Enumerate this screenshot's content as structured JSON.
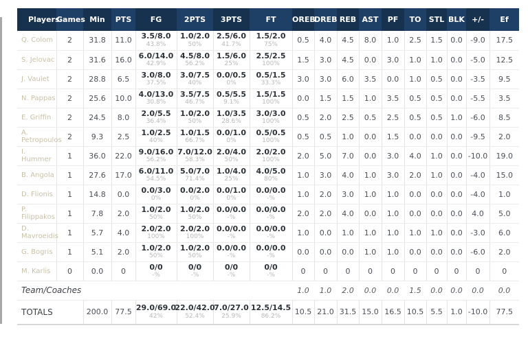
{
  "table": {
    "columns": [
      "Players",
      "Games",
      "Min",
      "PTS",
      "FG",
      "2PTS",
      "3PTS",
      "FT",
      "OREB",
      "DREB",
      "REB",
      "AST",
      "PF",
      "TO",
      "STL",
      "BLK",
      "+/-",
      "Ef"
    ],
    "players": [
      {
        "name": "Q. Colom",
        "games": "2",
        "min": "31.8",
        "pts": "11.0",
        "fg": {
          "v": "3.5/8.0",
          "pct": "43.8%"
        },
        "p2": {
          "v": "1.0/2.0",
          "pct": "50%"
        },
        "p3": {
          "v": "2.5/6.0",
          "pct": "41.7%"
        },
        "ft": {
          "v": "1.5/2.0",
          "pct": "75%"
        },
        "stats": [
          "0.5",
          "4.0",
          "4.5",
          "8.0",
          "1.0",
          "2.5",
          "1.5",
          "0.0",
          "-9.0",
          "17.5"
        ]
      },
      {
        "name": "S. Jelovac",
        "games": "2",
        "min": "31.6",
        "pts": "16.0",
        "fg": {
          "v": "6.0/14.0",
          "pct": "42.9%"
        },
        "p2": {
          "v": "4.5/8.0",
          "pct": "56.2%"
        },
        "p3": {
          "v": "1.5/6.0",
          "pct": "25%"
        },
        "ft": {
          "v": "2.5/2.5",
          "pct": "100%"
        },
        "stats": [
          "1.5",
          "3.0",
          "4.5",
          "0.0",
          "3.0",
          "1.0",
          "1.0",
          "0.0",
          "-5.0",
          "12.5"
        ]
      },
      {
        "name": "J. Vaulet",
        "games": "2",
        "min": "28.8",
        "pts": "6.5",
        "fg": {
          "v": "3.0/8.0",
          "pct": "37.5%"
        },
        "p2": {
          "v": "3.0/7.5",
          "pct": "40%"
        },
        "p3": {
          "v": "0.0/0.5",
          "pct": "0%"
        },
        "ft": {
          "v": "0.5/1.5",
          "pct": "33.3%"
        },
        "stats": [
          "3.0",
          "3.0",
          "6.0",
          "3.5",
          "0.0",
          "1.0",
          "0.5",
          "0.0",
          "-3.5",
          "9.5"
        ]
      },
      {
        "name": "N. Pappas",
        "games": "2",
        "min": "25.6",
        "pts": "10.0",
        "fg": {
          "v": "4.0/13.0",
          "pct": "30.8%"
        },
        "p2": {
          "v": "3.5/7.5",
          "pct": "46.7%"
        },
        "p3": {
          "v": "0.5/5.5",
          "pct": "9.1%"
        },
        "ft": {
          "v": "1.5/1.5",
          "pct": "100%"
        },
        "stats": [
          "0.0",
          "1.5",
          "1.5",
          "1.0",
          "3.5",
          "0.5",
          "0.5",
          "0.0",
          "-5.5",
          "3.5"
        ]
      },
      {
        "name": "E. Griffin",
        "games": "2",
        "min": "24.5",
        "pts": "8.0",
        "fg": {
          "v": "2.0/5.5",
          "pct": "36.4%"
        },
        "p2": {
          "v": "1.0/2.0",
          "pct": "50%"
        },
        "p3": {
          "v": "1.0/3.5",
          "pct": "28.6%"
        },
        "ft": {
          "v": "3.0/3.0",
          "pct": "100%"
        },
        "stats": [
          "0.5",
          "2.0",
          "2.5",
          "0.5",
          "2.5",
          "0.5",
          "0.5",
          "1.0",
          "-6.0",
          "8.5"
        ]
      },
      {
        "name": "A. Petropoulos",
        "games": "2",
        "min": "9.3",
        "pts": "2.5",
        "fg": {
          "v": "1.0/2.5",
          "pct": "40%"
        },
        "p2": {
          "v": "1.0/1.5",
          "pct": "66.7%"
        },
        "p3": {
          "v": "0.0/1.0",
          "pct": "0%"
        },
        "ft": {
          "v": "0.5/0.5",
          "pct": "100%"
        },
        "stats": [
          "0.5",
          "0.5",
          "1.0",
          "0.0",
          "1.5",
          "0.0",
          "0.0",
          "0.0",
          "-9.5",
          "2.0"
        ]
      },
      {
        "name": "I. Hummer",
        "games": "1",
        "min": "36.0",
        "pts": "22.0",
        "fg": {
          "v": "9.0/16.0",
          "pct": "56.2%"
        },
        "p2": {
          "v": "7.0/12.0",
          "pct": "58.3%"
        },
        "p3": {
          "v": "2.0/4.0",
          "pct": "50%"
        },
        "ft": {
          "v": "2.0/2.0",
          "pct": "100%"
        },
        "stats": [
          "2.0",
          "5.0",
          "7.0",
          "0.0",
          "3.0",
          "4.0",
          "1.0",
          "0.0",
          "-10.0",
          "19.0"
        ]
      },
      {
        "name": "B. Angola",
        "games": "1",
        "min": "27.6",
        "pts": "17.0",
        "fg": {
          "v": "6.0/11.0",
          "pct": "54.5%"
        },
        "p2": {
          "v": "5.0/7.0",
          "pct": "71.4%"
        },
        "p3": {
          "v": "1.0/4.0",
          "pct": "25%"
        },
        "ft": {
          "v": "4.0/5.0",
          "pct": "80%"
        },
        "stats": [
          "1.0",
          "3.0",
          "4.0",
          "1.0",
          "3.0",
          "2.0",
          "1.0",
          "0.0",
          "-4.0",
          "15.0"
        ]
      },
      {
        "name": "D. Flionis",
        "games": "1",
        "min": "14.8",
        "pts": "0.0",
        "fg": {
          "v": "0.0/3.0",
          "pct": "0%"
        },
        "p2": {
          "v": "0.0/2.0",
          "pct": "0%"
        },
        "p3": {
          "v": "0.0/1.0",
          "pct": "0%"
        },
        "ft": {
          "v": "0.0/0.0",
          "pct": "-%"
        },
        "stats": [
          "1.0",
          "2.0",
          "3.0",
          "1.0",
          "1.0",
          "0.0",
          "0.0",
          "0.0",
          "-4.0",
          "1.0"
        ]
      },
      {
        "name": "P. Filippakos",
        "games": "1",
        "min": "7.8",
        "pts": "2.0",
        "fg": {
          "v": "1.0/2.0",
          "pct": "50%"
        },
        "p2": {
          "v": "1.0/2.0",
          "pct": "50%"
        },
        "p3": {
          "v": "0.0/0.0",
          "pct": "-%"
        },
        "ft": {
          "v": "0.0/0.0",
          "pct": "-%"
        },
        "stats": [
          "2.0",
          "2.0",
          "4.0",
          "0.0",
          "1.0",
          "0.0",
          "0.0",
          "0.0",
          "4.0",
          "5.0"
        ]
      },
      {
        "name": "D. Mavroeidis",
        "games": "1",
        "min": "5.7",
        "pts": "4.0",
        "fg": {
          "v": "2.0/2.0",
          "pct": "100%"
        },
        "p2": {
          "v": "2.0/2.0",
          "pct": "100%"
        },
        "p3": {
          "v": "0.0/0.0",
          "pct": "-%"
        },
        "ft": {
          "v": "0.0/0.0",
          "pct": "-%"
        },
        "stats": [
          "1.0",
          "0.0",
          "1.0",
          "1.0",
          "1.0",
          "1.0",
          "1.0",
          "0.0",
          "-3.0",
          "6.0"
        ]
      },
      {
        "name": "G. Bogris",
        "games": "1",
        "min": "5.1",
        "pts": "2.0",
        "fg": {
          "v": "1.0/2.0",
          "pct": "50%"
        },
        "p2": {
          "v": "1.0/2.0",
          "pct": "50%"
        },
        "p3": {
          "v": "0.0/0.0",
          "pct": "-%"
        },
        "ft": {
          "v": "0.0/0.0",
          "pct": "-%"
        },
        "stats": [
          "0.0",
          "0.0",
          "0.0",
          "1.0",
          "1.0",
          "0.0",
          "0.0",
          "0.0",
          "-6.0",
          "2.0"
        ]
      },
      {
        "name": "M. Karlis",
        "games": "0",
        "min": "0.0",
        "pts": "0",
        "fg": {
          "v": "0/0",
          "pct": "-%"
        },
        "p2": {
          "v": "0/0",
          "pct": "-%"
        },
        "p3": {
          "v": "0/0",
          "pct": "-%"
        },
        "ft": {
          "v": "0/0",
          "pct": "-%"
        },
        "stats": [
          "0",
          "0",
          "0",
          "0",
          "0",
          "0",
          "0",
          "0",
          "0",
          "0"
        ]
      }
    ],
    "team_row": {
      "label": "Team/Coaches",
      "stats": [
        "1.0",
        "1.0",
        "2.0",
        "0.0",
        "0.0",
        "1.5",
        "0.0",
        "0.0",
        "0.0",
        "0.0"
      ]
    },
    "totals": {
      "label": "TOTALS",
      "min": "200.0",
      "pts": "77.5",
      "fg": {
        "v": "29.0/69.0",
        "pct": "42%"
      },
      "p2": {
        "v": "22.0/42.0",
        "pct": "52.4%"
      },
      "p3": {
        "v": "7.0/27.0",
        "pct": "25.9%"
      },
      "ft": {
        "v": "12.5/14.5",
        "pct": "86.2%"
      },
      "stats": [
        "10.5",
        "21.0",
        "31.5",
        "15.0",
        "16.5",
        "10.5",
        "5.5",
        "1.0",
        "-10.0",
        "77.5"
      ]
    }
  },
  "colors": {
    "header_dark": "#16324f",
    "header_light": "#1f4066",
    "player_link": "#c8c1a6",
    "stat_text": "#4b4f55",
    "shot_bold": "#2d3238",
    "pct_gray": "#b8b8b8"
  }
}
